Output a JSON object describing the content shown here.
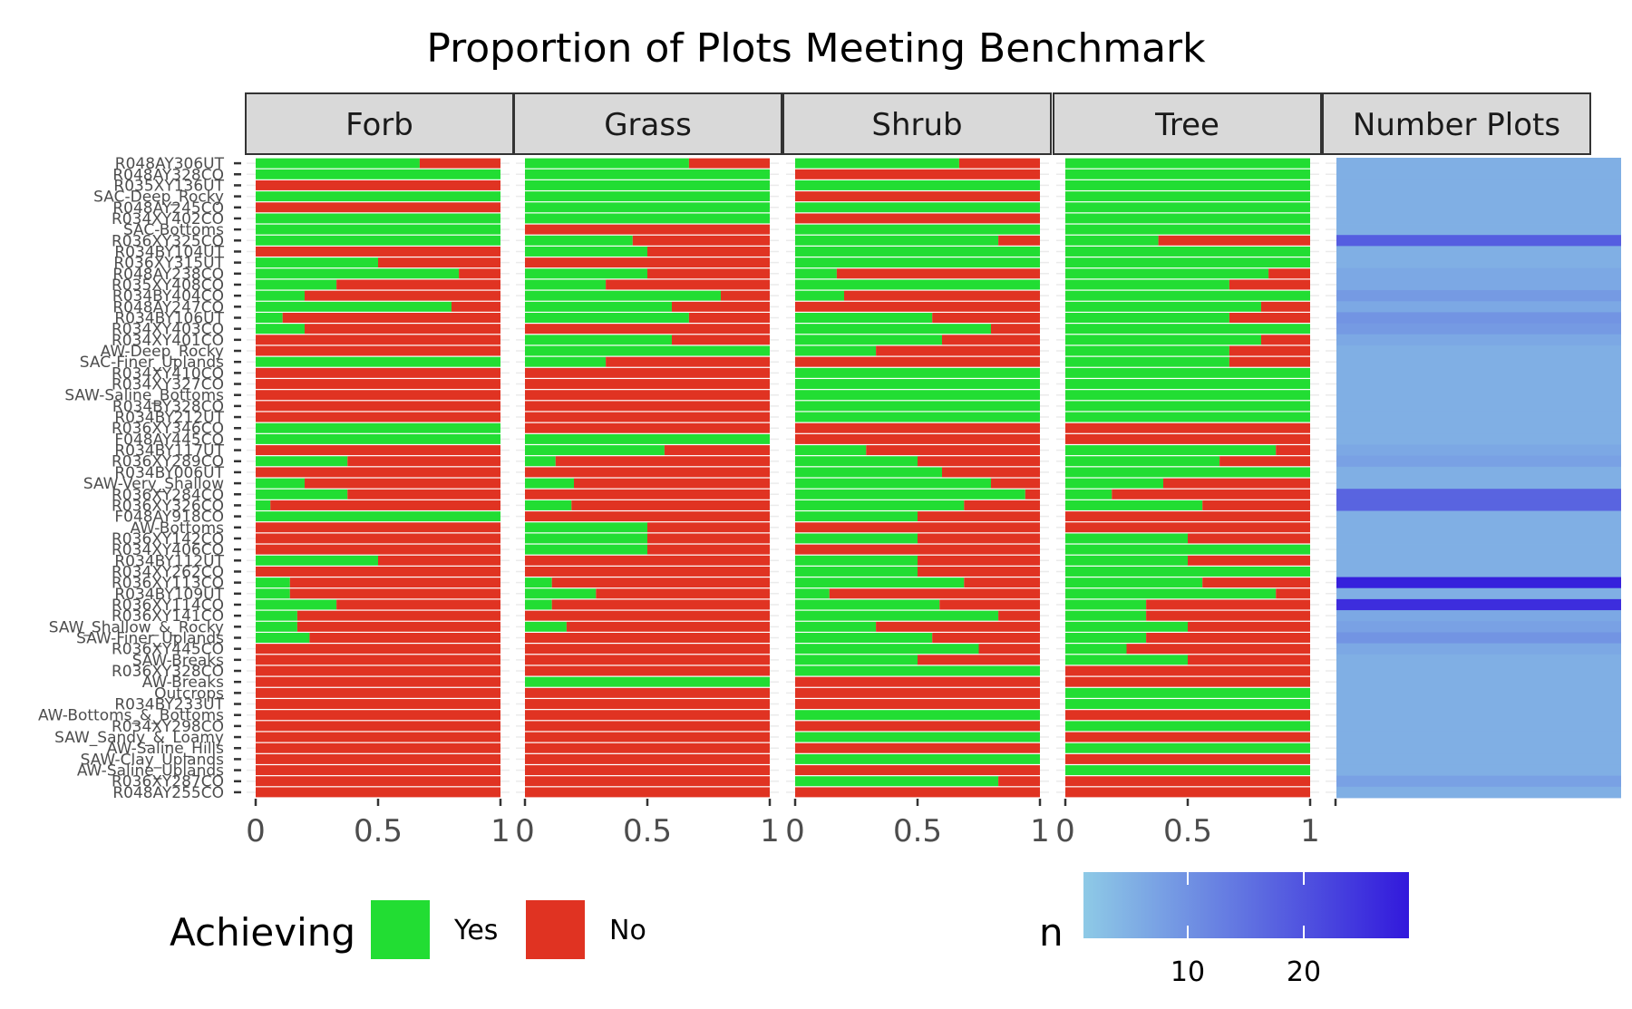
{
  "chart_data": {
    "type": "bar",
    "title": "Proportion of Plots Meeting Benchmark",
    "facets": [
      "Forb",
      "Grass",
      "Shrub",
      "Tree"
    ],
    "count_facet": "Number Plots",
    "x_ticks": [
      "0",
      "0.5",
      "1"
    ],
    "xlim": [
      0,
      1
    ],
    "rows": [
      "R048AY306UT",
      "R048AY328CO",
      "R035XY136UT",
      "SAC-Deep_Rocky",
      "R048AY245CO",
      "R034XY402CO",
      "SAC-Bottoms",
      "R036XY325CO",
      "R034BY104UT",
      "R036XY315UT",
      "R048AY238CO",
      "R035XY408CO",
      "R034BY404CO",
      "R048AY247CO",
      "R034BY106UT",
      "R034XY403CO",
      "R034XY401CO",
      "AW-Deep_Rocky",
      "SAC-Finer_Uplands",
      "R034XY410CO",
      "R034XY327CO",
      "SAW-Saline_Bottoms",
      "R034BY328CO",
      "R034BY212UT",
      "R036XY346CO",
      "F048AY445CO",
      "R034BY117UT",
      "R036XY289CO",
      "R034BY006UT",
      "SAW-Very_Shallow",
      "R036XY284CO",
      "R036XY326CO",
      "F048AY918CO",
      "AW-Bottoms",
      "R036XY142CO",
      "R034XY406CO",
      "R034BY112UT",
      "R034XY262CO",
      "R036XY113CO",
      "R034BY109UT",
      "R036XY114CO",
      "R036XY141CO",
      "SAW_Shallow_&_Rocky",
      "SAW-Finer_Uplands",
      "R036XY445CO",
      "SAW-Breaks",
      "R036XY328CO",
      "AW-Breaks",
      "Outcrops",
      "R034BY233UT",
      "AW-Bottoms_&_Bottoms",
      "R034XY298CO",
      "SAW_Sandy_&_Loamy",
      "AW-Saline_Hills",
      "SAW-Clay_Uplands",
      "AW-Saline_Uplands",
      "R036XY287CO",
      "R048AY255CO"
    ],
    "series": [
      {
        "name": "Forb",
        "values": [
          0.67,
          1,
          0,
          1,
          0,
          1,
          1,
          1,
          0,
          0.5,
          0.83,
          0.33,
          0.2,
          0.8,
          0.11,
          0.2,
          0,
          0,
          1,
          0,
          0,
          0,
          0,
          0,
          1,
          1,
          0,
          0.375,
          0,
          0.2,
          0.375,
          0.06,
          1,
          0,
          0,
          0,
          0.5,
          0,
          0.14,
          0.14,
          0.33,
          0.17,
          0.17,
          0.22,
          0,
          0,
          0,
          0,
          0,
          0,
          0,
          0,
          0,
          0,
          0,
          0,
          0,
          0
        ]
      },
      {
        "name": "Grass",
        "values": [
          0.67,
          1,
          1,
          1,
          1,
          1,
          0,
          0.44,
          0.5,
          0,
          0.5,
          0.33,
          0.8,
          0.6,
          0.67,
          0,
          0.6,
          1,
          0.33,
          0,
          0,
          0,
          0,
          0,
          0,
          1,
          0.57,
          0.125,
          0,
          0.2,
          0,
          0.19,
          0,
          0.5,
          0.5,
          0.5,
          0,
          0,
          0.11,
          0.29,
          0.11,
          0,
          0.17,
          0,
          0,
          0,
          0,
          1,
          0,
          0,
          0,
          0,
          0,
          0,
          0,
          0,
          0,
          0
        ]
      },
      {
        "name": "Shrub",
        "values": [
          0.67,
          0,
          1,
          0,
          1,
          0,
          1,
          0.83,
          1,
          1,
          0.17,
          1,
          0.2,
          0,
          0.56,
          0.8,
          0.6,
          0.33,
          0,
          1,
          1,
          1,
          1,
          1,
          0,
          0,
          0.29,
          0.5,
          0.6,
          0.8,
          0.94,
          0.69,
          0.5,
          0,
          0.5,
          0,
          0.5,
          0.5,
          0.69,
          0.14,
          0.59,
          0.83,
          0.33,
          0.56,
          0.75,
          0.5,
          1,
          0,
          0,
          0,
          1,
          0,
          1,
          0,
          1,
          0,
          0.83,
          0
        ]
      },
      {
        "name": "Tree",
        "values": [
          1,
          1,
          1,
          1,
          1,
          1,
          1,
          0.38,
          1,
          1,
          0.83,
          0.67,
          1,
          0.8,
          0.67,
          1,
          0.8,
          0.67,
          0.67,
          1,
          1,
          1,
          1,
          1,
          0,
          0,
          0.86,
          0.63,
          1,
          0.4,
          0.19,
          0.56,
          0,
          0,
          0.5,
          1,
          0.5,
          1,
          0.56,
          0.86,
          0.33,
          0.33,
          0.5,
          0.33,
          0.25,
          0.5,
          0,
          0,
          1,
          1,
          0,
          1,
          0,
          1,
          0,
          1,
          0,
          0
        ]
      }
    ],
    "number_plots": [
      5,
      5,
      5,
      5,
      5,
      5,
      5,
      17,
      5,
      5,
      6,
      6,
      8,
      6,
      9,
      8,
      6,
      5,
      5,
      5,
      5,
      5,
      5,
      5,
      5,
      5,
      6,
      7,
      5,
      5,
      16,
      16,
      5,
      5,
      5,
      5,
      5,
      5,
      26,
      5,
      24,
      6,
      7,
      9,
      6,
      5,
      5,
      5,
      5,
      5,
      5,
      5,
      5,
      5,
      5,
      5,
      7,
      5
    ],
    "legend": {
      "fill_title": "Achieving",
      "fill_entries": [
        {
          "label": "Yes",
          "color": "#22dd33"
        },
        {
          "label": "No",
          "color": "#e03322"
        }
      ],
      "color_title": "n",
      "color_ticks": [
        "10",
        "20"
      ],
      "color_scale": {
        "low_value": 1,
        "high_value": 27,
        "low_color": "#8ecae6",
        "high_color": "#3219dc"
      }
    },
    "colors": {
      "yes": "#22dd33",
      "no": "#e03322",
      "strip_fill": "#d9d9d9",
      "strip_border": "#333333",
      "grid": "#ebebeb"
    }
  }
}
